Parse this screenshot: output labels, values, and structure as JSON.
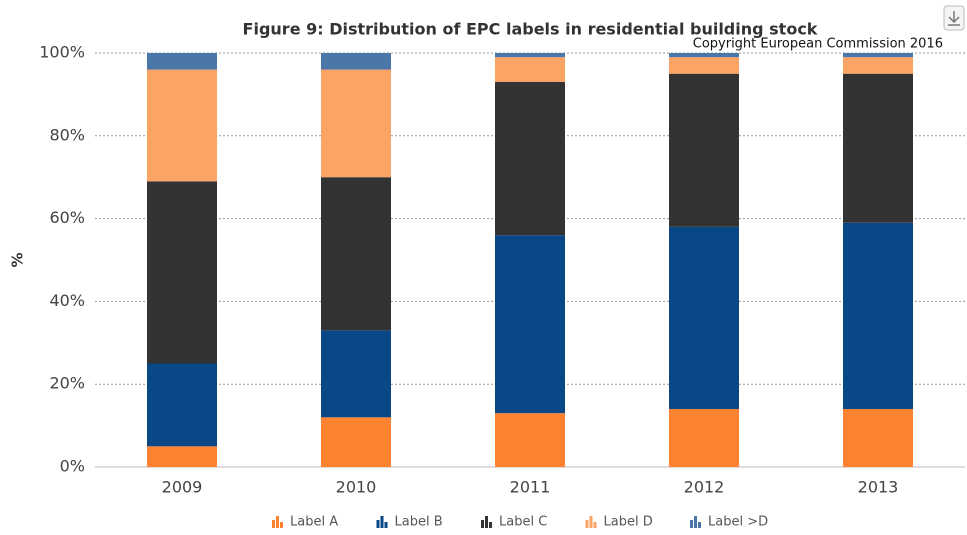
{
  "chart_data": {
    "type": "stacked_bar",
    "title": "Figure 9: Distribution of EPC labels in residential building stock",
    "annotation": "Copyright European Commission 2016",
    "y_label": "%",
    "categories": [
      "2009",
      "2010",
      "2011",
      "2012",
      "2013"
    ],
    "series": [
      {
        "name": "Label A",
        "color": "#fd8331",
        "values": [
          5,
          12,
          13,
          14,
          14
        ]
      },
      {
        "name": "Label B",
        "color": "#0a4787",
        "values": [
          20,
          21,
          43,
          44,
          45
        ]
      },
      {
        "name": "Label C",
        "color": "#333333",
        "values": [
          44,
          37,
          37,
          37,
          36
        ]
      },
      {
        "name": "Label D",
        "color": "#fca366",
        "values": [
          27,
          26,
          6,
          4,
          4
        ]
      },
      {
        "name": "Label >D",
        "color": "#4a76a8",
        "values": [
          4,
          4,
          1,
          1,
          1
        ]
      }
    ],
    "ylim": [
      0,
      100
    ],
    "yticks": [
      {
        "value": 0,
        "label": "0%"
      },
      {
        "value": 20,
        "label": "20%"
      },
      {
        "value": 40,
        "label": "40%"
      },
      {
        "value": 60,
        "label": "60%"
      },
      {
        "value": 80,
        "label": "80%"
      },
      {
        "value": 100,
        "label": "100%"
      }
    ],
    "grid": true
  }
}
